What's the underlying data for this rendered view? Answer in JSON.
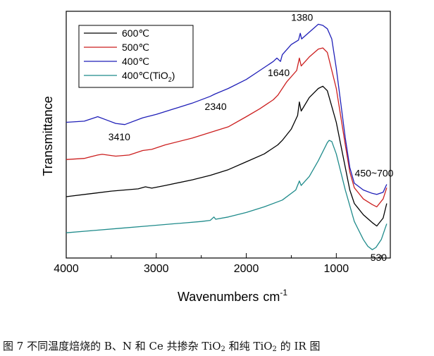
{
  "chart_data": {
    "type": "line",
    "ylabel": "Transmittance",
    "xlabel_text": "Wavenumbers",
    "xlabel_unit": "cm",
    "xlabel_exp": "-1",
    "xlim": [
      4000,
      400
    ],
    "xticks": [
      4000,
      3000,
      2000,
      1000
    ],
    "yaxis_ticks_labels": false,
    "legend_position": "top-left",
    "series": [
      {
        "name": "600℃",
        "color": "#000000",
        "points": [
          [
            4000,
            0.19
          ],
          [
            3700,
            0.205
          ],
          [
            3500,
            0.215
          ],
          [
            3200,
            0.225
          ],
          [
            3120,
            0.234
          ],
          [
            3050,
            0.228
          ],
          [
            2900,
            0.24
          ],
          [
            2600,
            0.265
          ],
          [
            2400,
            0.285
          ],
          [
            2200,
            0.31
          ],
          [
            2000,
            0.345
          ],
          [
            1800,
            0.38
          ],
          [
            1650,
            0.42
          ],
          [
            1600,
            0.44
          ],
          [
            1500,
            0.49
          ],
          [
            1430,
            0.55
          ],
          [
            1410,
            0.61
          ],
          [
            1390,
            0.57
          ],
          [
            1300,
            0.63
          ],
          [
            1200,
            0.67
          ],
          [
            1150,
            0.68
          ],
          [
            1100,
            0.66
          ],
          [
            1000,
            0.52
          ],
          [
            900,
            0.32
          ],
          [
            850,
            0.22
          ],
          [
            800,
            0.16
          ],
          [
            700,
            0.11
          ],
          [
            600,
            0.075
          ],
          [
            550,
            0.06
          ],
          [
            480,
            0.095
          ],
          [
            440,
            0.16
          ]
        ]
      },
      {
        "name": "500℃",
        "color": "#cc1f1f",
        "points": [
          [
            4000,
            0.355
          ],
          [
            3800,
            0.36
          ],
          [
            3650,
            0.375
          ],
          [
            3600,
            0.378
          ],
          [
            3450,
            0.37
          ],
          [
            3300,
            0.375
          ],
          [
            3150,
            0.395
          ],
          [
            3050,
            0.4
          ],
          [
            2900,
            0.42
          ],
          [
            2600,
            0.45
          ],
          [
            2400,
            0.475
          ],
          [
            2200,
            0.5
          ],
          [
            2000,
            0.545
          ],
          [
            1850,
            0.58
          ],
          [
            1700,
            0.62
          ],
          [
            1650,
            0.64
          ],
          [
            1550,
            0.7
          ],
          [
            1440,
            0.75
          ],
          [
            1410,
            0.805
          ],
          [
            1390,
            0.77
          ],
          [
            1300,
            0.81
          ],
          [
            1200,
            0.845
          ],
          [
            1150,
            0.85
          ],
          [
            1100,
            0.83
          ],
          [
            1000,
            0.67
          ],
          [
            900,
            0.42
          ],
          [
            850,
            0.3
          ],
          [
            800,
            0.23
          ],
          [
            700,
            0.18
          ],
          [
            600,
            0.155
          ],
          [
            550,
            0.145
          ],
          [
            480,
            0.18
          ],
          [
            440,
            0.23
          ]
        ]
      },
      {
        "name": "400℃",
        "color": "#1f1fb8",
        "points": [
          [
            4000,
            0.52
          ],
          [
            3800,
            0.525
          ],
          [
            3650,
            0.545
          ],
          [
            3550,
            0.53
          ],
          [
            3450,
            0.515
          ],
          [
            3350,
            0.51
          ],
          [
            3150,
            0.54
          ],
          [
            3000,
            0.555
          ],
          [
            2800,
            0.58
          ],
          [
            2600,
            0.605
          ],
          [
            2400,
            0.635
          ],
          [
            2350,
            0.645
          ],
          [
            2200,
            0.67
          ],
          [
            2000,
            0.71
          ],
          [
            1850,
            0.75
          ],
          [
            1700,
            0.79
          ],
          [
            1660,
            0.805
          ],
          [
            1620,
            0.79
          ],
          [
            1600,
            0.82
          ],
          [
            1500,
            0.865
          ],
          [
            1420,
            0.885
          ],
          [
            1400,
            0.915
          ],
          [
            1385,
            0.89
          ],
          [
            1300,
            0.92
          ],
          [
            1200,
            0.955
          ],
          [
            1150,
            0.95
          ],
          [
            1100,
            0.935
          ],
          [
            1050,
            0.89
          ],
          [
            1000,
            0.76
          ],
          [
            900,
            0.45
          ],
          [
            850,
            0.32
          ],
          [
            800,
            0.25
          ],
          [
            700,
            0.22
          ],
          [
            600,
            0.205
          ],
          [
            550,
            0.2
          ],
          [
            480,
            0.21
          ],
          [
            440,
            0.245
          ]
        ]
      },
      {
        "name": "400℃(TiO2)",
        "color": "#1f8b8b",
        "points": [
          [
            4000,
            0.03
          ],
          [
            3700,
            0.04
          ],
          [
            3400,
            0.05
          ],
          [
            3100,
            0.06
          ],
          [
            2800,
            0.07
          ],
          [
            2500,
            0.08
          ],
          [
            2400,
            0.085
          ],
          [
            2360,
            0.1
          ],
          [
            2340,
            0.09
          ],
          [
            2200,
            0.1
          ],
          [
            2000,
            0.12
          ],
          [
            1800,
            0.145
          ],
          [
            1600,
            0.175
          ],
          [
            1450,
            0.22
          ],
          [
            1410,
            0.26
          ],
          [
            1390,
            0.24
          ],
          [
            1300,
            0.28
          ],
          [
            1200,
            0.35
          ],
          [
            1100,
            0.43
          ],
          [
            1080,
            0.44
          ],
          [
            1050,
            0.435
          ],
          [
            1000,
            0.38
          ],
          [
            950,
            0.3
          ],
          [
            900,
            0.22
          ],
          [
            800,
            0.08
          ],
          [
            700,
            0.0
          ],
          [
            650,
            -0.03
          ],
          [
            600,
            -0.045
          ],
          [
            560,
            -0.035
          ],
          [
            500,
            0.0
          ],
          [
            440,
            0.07
          ]
        ]
      }
    ],
    "annotations": [
      {
        "text": "3410",
        "at": [
          3410,
          0.44
        ]
      },
      {
        "text": "2340",
        "at": [
          2340,
          0.575
        ]
      },
      {
        "text": "1640",
        "at": [
          1640,
          0.725
        ]
      },
      {
        "text": "1380",
        "at": [
          1380,
          0.97
        ]
      },
      {
        "text": "450~700",
        "at": [
          580,
          0.28
        ]
      },
      {
        "text": "530",
        "at": [
          530,
          -0.095
        ]
      }
    ]
  },
  "caption": {
    "prefix": "图 7  不同温度焙烧的 B、N 和 Ce 共掺杂 TiO",
    "sub1": "2",
    "middle": " 和纯 TiO",
    "sub2": "2",
    "suffix": " 的 IR 图"
  },
  "colors": {
    "axis": "#000000",
    "caption": "#111111"
  }
}
